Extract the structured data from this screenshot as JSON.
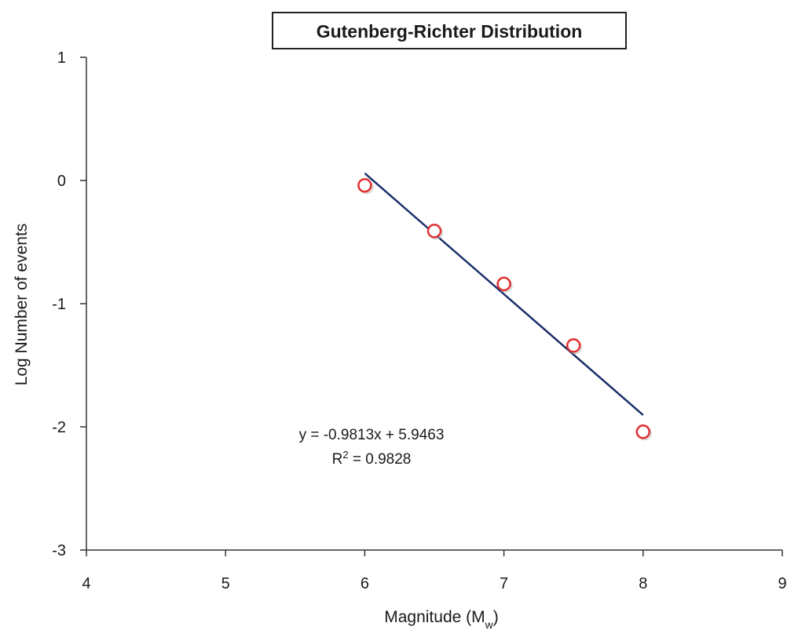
{
  "chart_data": {
    "type": "scatter",
    "title": "Gutenberg-Richter Distribution",
    "xlabel": "Magnitude (M",
    "xlabel_subscript": "w",
    "xlabel_suffix": ")",
    "ylabel": "Log Number of events",
    "xlim": [
      4,
      9
    ],
    "ylim": [
      -3,
      1
    ],
    "x_ticks": [
      4,
      5,
      6,
      7,
      8,
      9
    ],
    "y_ticks": [
      -3,
      -2,
      -1,
      0,
      1
    ],
    "grid": false,
    "series": [
      {
        "type": "scatter",
        "marker": "open-circle",
        "color": "#e03030",
        "x": [
          6,
          6.5,
          7,
          7.5,
          8
        ],
        "y": [
          -0.04,
          -0.41,
          -0.84,
          -1.34,
          -2.04
        ]
      },
      {
        "type": "line",
        "color": "#1a2f6b",
        "x": [
          6,
          8
        ],
        "y": [
          0.0585,
          -1.9041
        ]
      }
    ],
    "annotations": {
      "equation": "y = -0.9813x + 5.9463",
      "r2_prefix": "R",
      "r2_superscript": "2",
      "r2_value": " = 0.9828"
    }
  }
}
